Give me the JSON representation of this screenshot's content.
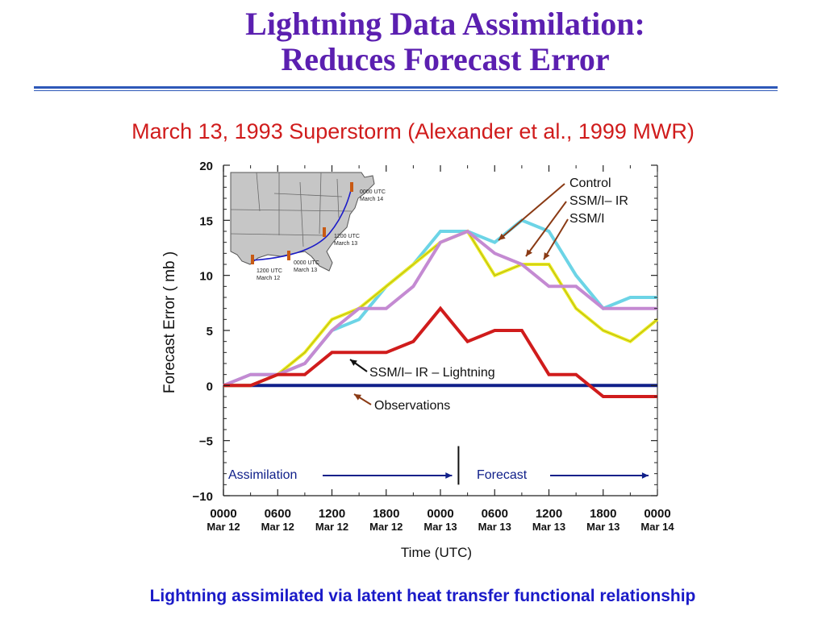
{
  "slide": {
    "title_line1": "Lightning Data Assimilation:",
    "title_line2": "Reduces Forecast Error",
    "subtitle": "March 13, 1993 Superstorm (Alexander et al., 1999 MWR)",
    "caption": "Lightning assimilated via latent heat transfer functional relationship"
  },
  "colors": {
    "title": "#5b1fb0",
    "subtitle": "#d01c1c",
    "caption": "#1a1ac8",
    "rule": "#2e58b8"
  },
  "chart_data": {
    "type": "line",
    "title": "",
    "xlabel": "Time (UTC)",
    "ylabel": "Forecast Error ( mb )",
    "ylim": [
      -10,
      20
    ],
    "yticks": [
      20,
      15,
      10,
      5,
      0,
      -5,
      -10
    ],
    "xlim": [
      0,
      48
    ],
    "xticks": [
      {
        "hour": 0,
        "time": "0000",
        "date": "Mar 12"
      },
      {
        "hour": 6,
        "time": "0600",
        "date": "Mar 12"
      },
      {
        "hour": 12,
        "time": "1200",
        "date": "Mar 12"
      },
      {
        "hour": 18,
        "time": "1800",
        "date": "Mar 12"
      },
      {
        "hour": 24,
        "time": "0000",
        "date": "Mar 13"
      },
      {
        "hour": 30,
        "time": "0600",
        "date": "Mar 13"
      },
      {
        "hour": 36,
        "time": "1200",
        "date": "Mar 13"
      },
      {
        "hour": 42,
        "time": "1800",
        "date": "Mar 13"
      },
      {
        "hour": 48,
        "time": "0000",
        "date": "Mar 14"
      }
    ],
    "x": [
      0,
      3,
      6,
      9,
      12,
      15,
      18,
      21,
      24,
      27,
      30,
      33,
      36,
      39,
      42,
      45,
      48
    ],
    "series": [
      {
        "name": "Control",
        "color": "#6cd4e6",
        "values": [
          0,
          1,
          1,
          2,
          5,
          6,
          9,
          11,
          14,
          14,
          13,
          15,
          14,
          10,
          7,
          8,
          8
        ]
      },
      {
        "name": "SSM/I– IR",
        "color": "#ecec22",
        "values": [
          0,
          0,
          1,
          3,
          6,
          7,
          9,
          11,
          13,
          14,
          10,
          11,
          11,
          7,
          5,
          4,
          6
        ]
      },
      {
        "name": "SSM/I",
        "color": "#c48ad2",
        "values": [
          0,
          1,
          1,
          2,
          5,
          7,
          7,
          9,
          13,
          14,
          12,
          11,
          9,
          9,
          7,
          7,
          7
        ]
      },
      {
        "name": "SSM/I– IR – Lightning",
        "color": "#d01c1c",
        "values": [
          0,
          0,
          1,
          1,
          3,
          3,
          3,
          4,
          7,
          4,
          5,
          5,
          1,
          1,
          -1,
          -1,
          -1
        ]
      },
      {
        "name": "Observations",
        "color": "#10208a",
        "values": [
          0,
          0,
          0,
          0,
          0,
          0,
          0,
          0,
          0,
          0,
          0,
          0,
          0,
          0,
          0,
          0,
          0
        ]
      }
    ],
    "annotations": {
      "assimilation": "Assimilation",
      "forecast": "Forecast",
      "split_hour": 26
    },
    "inset_map": {
      "labels": [
        {
          "utc": "0000 UTC",
          "date": "March 14"
        },
        {
          "utc": "1200 UTC",
          "date": "March 13"
        },
        {
          "utc": "0000 UTC",
          "date": "March 13"
        },
        {
          "utc": "1200 UTC",
          "date": "March 12"
        }
      ]
    }
  }
}
